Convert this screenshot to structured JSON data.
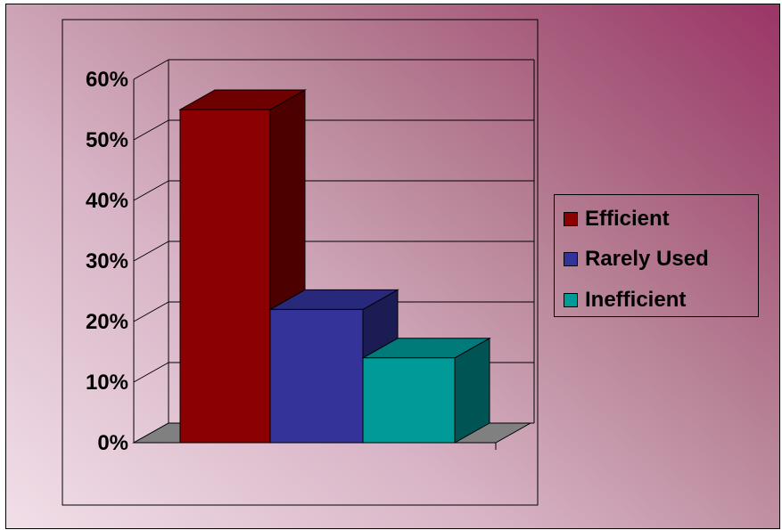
{
  "chart_data": {
    "type": "bar",
    "style": "3d",
    "title": "",
    "xlabel": "",
    "ylabel": "",
    "y_ticks": [
      "0%",
      "10%",
      "20%",
      "30%",
      "40%",
      "50%",
      "60%"
    ],
    "ylim": [
      0,
      60
    ],
    "grid": true,
    "legend_position": "right",
    "series": [
      {
        "name": "Efficient",
        "value": 55,
        "color": "#8b0000"
      },
      {
        "name": "Rarely Used",
        "value": 22,
        "color": "#33339a"
      },
      {
        "name": "Inefficient",
        "value": 14,
        "color": "#009a99"
      }
    ]
  }
}
